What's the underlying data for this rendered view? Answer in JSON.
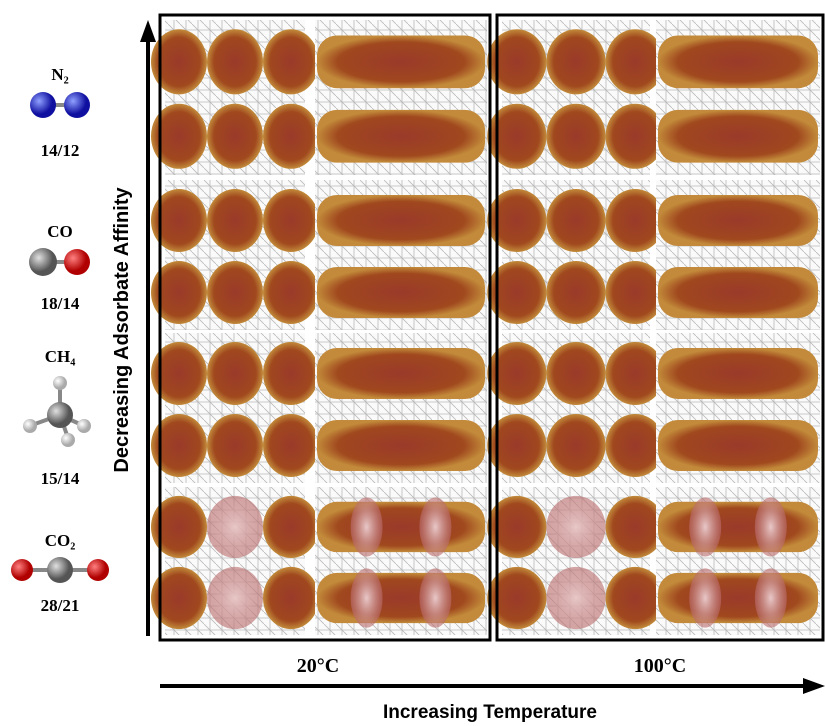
{
  "molecules": [
    {
      "label": "N₂",
      "ratio": "14/12"
    },
    {
      "label": "CO",
      "ratio": "18/14"
    },
    {
      "label": "CH₄",
      "ratio": "15/14"
    },
    {
      "label": "CO₂",
      "ratio": "28/21"
    }
  ],
  "y_axis_label": "Decreasing Adsorbate Affinity",
  "x_axis_label": "Increasing Temperature",
  "columns": [
    "20°C",
    "100°C"
  ]
}
